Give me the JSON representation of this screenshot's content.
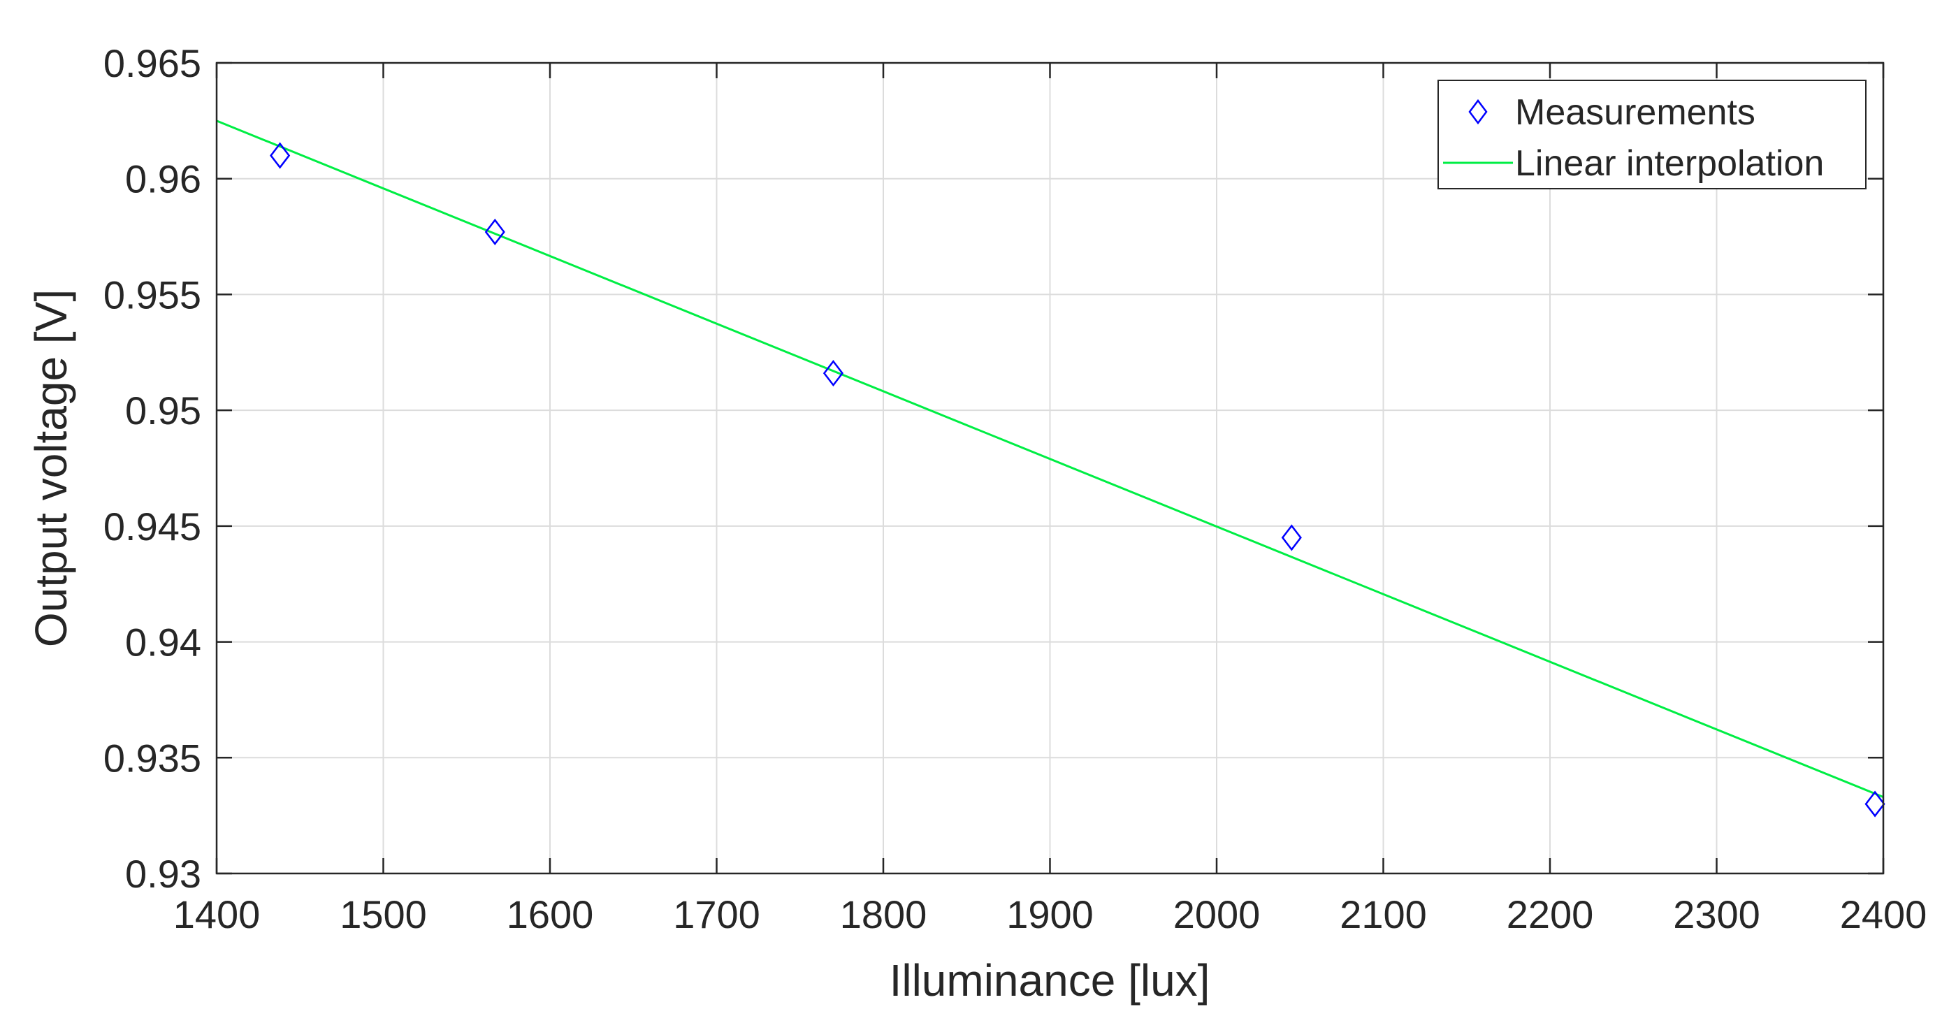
{
  "chart_data": {
    "type": "scatter",
    "xlabel": "Illuminance [lux]",
    "ylabel": "Output voltage [V]",
    "xlim": [
      1400,
      2400
    ],
    "ylim": [
      0.93,
      0.965
    ],
    "x_ticks": [
      1400,
      1500,
      1600,
      1700,
      1800,
      1900,
      2000,
      2100,
      2200,
      2300,
      2400
    ],
    "x_tick_labels": [
      "1400",
      "1500",
      "1600",
      "1700",
      "1800",
      "1900",
      "2000",
      "2100",
      "2200",
      "2300",
      "2400"
    ],
    "y_ticks": [
      0.93,
      0.935,
      0.94,
      0.945,
      0.95,
      0.955,
      0.96,
      0.965
    ],
    "y_tick_labels": [
      "0.93",
      "0.935",
      "0.94",
      "0.945",
      "0.95",
      "0.955",
      "0.96",
      "0.965"
    ],
    "grid": true,
    "legend_position": "top-right",
    "series": [
      {
        "name": "Measurements",
        "kind": "scatter",
        "marker": "diamond",
        "color": "#0000ff",
        "x": [
          1438,
          1567,
          1770,
          2045,
          2395
        ],
        "y": [
          0.961,
          0.9577,
          0.9516,
          0.9445,
          0.933
        ]
      },
      {
        "name": "Linear interpolation",
        "kind": "line",
        "color": "#00ee44",
        "x": [
          1400,
          2400
        ],
        "y": [
          0.9625,
          0.9333
        ]
      }
    ]
  }
}
